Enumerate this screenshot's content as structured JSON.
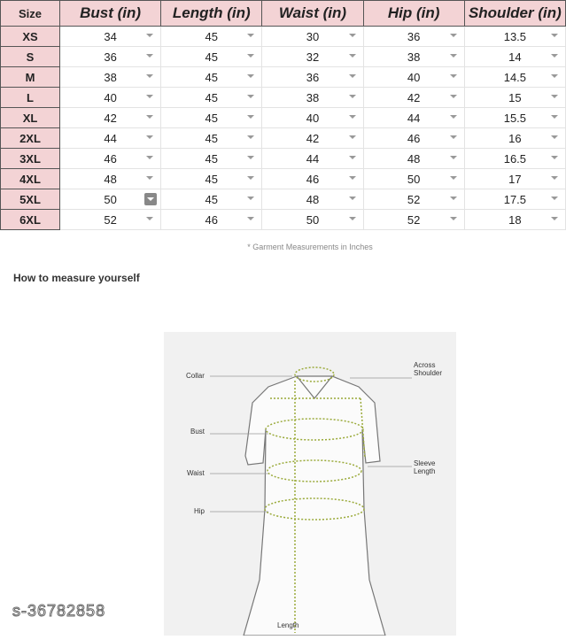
{
  "table": {
    "headers": [
      "Size",
      "Bust (in)",
      "Length (in)",
      "Waist (in)",
      "Hip (in)",
      "Shoulder (in)"
    ],
    "rows": [
      [
        "XS",
        "34",
        "45",
        "30",
        "36",
        "13.5"
      ],
      [
        "S",
        "36",
        "45",
        "32",
        "38",
        "14"
      ],
      [
        "M",
        "38",
        "45",
        "36",
        "40",
        "14.5"
      ],
      [
        "L",
        "40",
        "45",
        "38",
        "42",
        "15"
      ],
      [
        "XL",
        "42",
        "45",
        "40",
        "44",
        "15.5"
      ],
      [
        "2XL",
        "44",
        "45",
        "42",
        "46",
        "16"
      ],
      [
        "3XL",
        "46",
        "45",
        "44",
        "48",
        "16.5"
      ],
      [
        "4XL",
        "48",
        "45",
        "46",
        "50",
        "17"
      ],
      [
        "5XL",
        "50",
        "45",
        "48",
        "52",
        "17.5"
      ],
      [
        "6XL",
        "52",
        "46",
        "50",
        "52",
        "18"
      ]
    ]
  },
  "note": "* Garment Measurements in Inches",
  "section_title": "How to measure yourself",
  "diagram": {
    "labels": {
      "collar": "Collar",
      "shoulder": "Across Shoulder",
      "bust": "Bust",
      "sleeve": "Sleeve Length",
      "waist": "Waist",
      "hip": "Hip",
      "length": "Length"
    }
  },
  "watermark": "s-36782858",
  "colors": {
    "header_bg": "#f3d3d5",
    "guide": "#9aaa3a"
  }
}
